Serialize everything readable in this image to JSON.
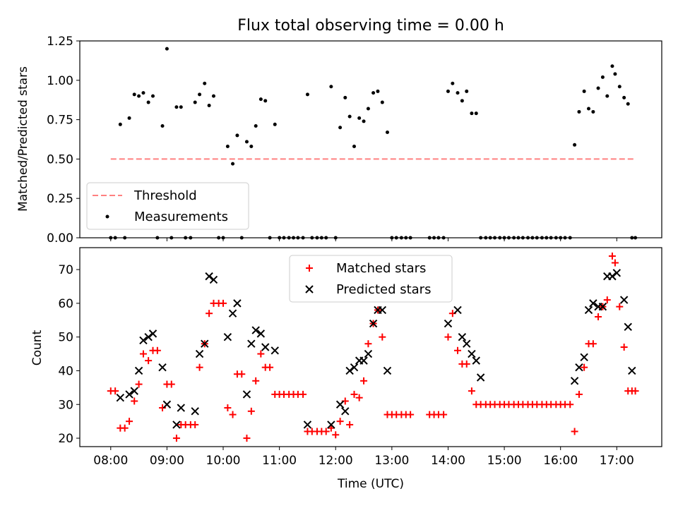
{
  "chart_data": [
    {
      "type": "scatter",
      "title": "Flux total observing time = 0.00 h",
      "xlabel": "",
      "ylabel": "Matched/Predicted stars",
      "xlim": [
        7.45,
        17.8
      ],
      "ylim": [
        0.0,
        1.25
      ],
      "yticks": [
        0.0,
        0.25,
        0.5,
        0.75,
        1.0,
        1.25
      ],
      "ytick_labels": [
        "0.00",
        "0.25",
        "0.50",
        "0.75",
        "1.00",
        "1.25"
      ],
      "threshold": {
        "name": "Threshold",
        "value": 0.5,
        "x_range": [
          8.0,
          17.33
        ],
        "color": "#ff8080"
      },
      "legend": {
        "location": "lower-left",
        "entries": [
          "Threshold",
          "Measurements"
        ]
      },
      "series": [
        {
          "name": "Measurements",
          "color": "#000000",
          "marker": "dot",
          "x": [
            8.0,
            8.08,
            8.17,
            8.25,
            8.33,
            8.42,
            8.5,
            8.58,
            8.67,
            8.75,
            8.83,
            8.92,
            9.0,
            9.08,
            9.17,
            9.25,
            9.33,
            9.42,
            9.5,
            9.58,
            9.67,
            9.75,
            9.83,
            9.92,
            10.0,
            10.08,
            10.17,
            10.25,
            10.33,
            10.42,
            10.5,
            10.58,
            10.67,
            10.75,
            10.83,
            10.92,
            11.0,
            11.08,
            11.17,
            11.25,
            11.33,
            11.42,
            11.5,
            11.58,
            11.67,
            11.75,
            11.83,
            11.92,
            12.0,
            12.08,
            12.17,
            12.25,
            12.33,
            12.42,
            12.5,
            12.58,
            12.67,
            12.75,
            12.83,
            12.92,
            13.0,
            13.08,
            13.17,
            13.25,
            13.33,
            13.67,
            13.75,
            13.83,
            13.92,
            14.0,
            14.08,
            14.17,
            14.25,
            14.33,
            14.42,
            14.5,
            14.58,
            14.67,
            14.75,
            14.83,
            14.92,
            15.0,
            15.08,
            15.17,
            15.25,
            15.33,
            15.42,
            15.5,
            15.58,
            15.67,
            15.75,
            15.83,
            15.92,
            16.0,
            16.08,
            16.17,
            16.25,
            16.33,
            16.42,
            16.5,
            16.58,
            16.67,
            16.75,
            16.83,
            16.92,
            16.97,
            17.05,
            17.13,
            17.2,
            17.27,
            17.33
          ],
          "y": [
            0.0,
            0.0,
            0.72,
            0.0,
            0.76,
            0.91,
            0.9,
            0.92,
            0.86,
            0.9,
            0.0,
            0.71,
            1.2,
            0.0,
            0.83,
            0.83,
            0.0,
            0.0,
            0.86,
            0.91,
            0.98,
            0.84,
            0.9,
            0.0,
            0.0,
            0.58,
            0.47,
            0.65,
            0.0,
            0.61,
            0.58,
            0.71,
            0.88,
            0.87,
            0.0,
            0.72,
            0.0,
            0.0,
            0.0,
            0.0,
            0.0,
            0.0,
            0.91,
            0.0,
            0.0,
            0.0,
            0.0,
            0.96,
            0.0,
            0.7,
            0.89,
            0.77,
            0.58,
            0.76,
            0.74,
            0.82,
            0.92,
            0.93,
            0.86,
            0.67,
            0.0,
            0.0,
            0.0,
            0.0,
            0.0,
            0.0,
            0.0,
            0.0,
            0.0,
            0.93,
            0.98,
            0.92,
            0.87,
            0.93,
            0.79,
            0.79,
            0.0,
            0.0,
            0.0,
            0.0,
            0.0,
            0.0,
            0.0,
            0.0,
            0.0,
            0.0,
            0.0,
            0.0,
            0.0,
            0.0,
            0.0,
            0.0,
            0.0,
            0.0,
            0.0,
            0.0,
            0.59,
            0.8,
            0.93,
            0.82,
            0.8,
            0.95,
            1.02,
            0.9,
            1.09,
            1.04,
            0.96,
            0.89,
            0.85,
            0.0,
            0.0
          ]
        }
      ]
    },
    {
      "type": "scatter",
      "title": "",
      "xlabel": "Time (UTC)",
      "ylabel": "Count",
      "xlim": [
        7.45,
        17.8
      ],
      "ylim": [
        17.5,
        76.5
      ],
      "yticks": [
        20,
        30,
        40,
        50,
        60,
        70
      ],
      "ytick_labels": [
        "20",
        "30",
        "40",
        "50",
        "60",
        "70"
      ],
      "xticks": [
        8,
        9,
        10,
        11,
        12,
        13,
        14,
        15,
        16,
        17
      ],
      "xtick_labels": [
        "08:00",
        "09:00",
        "10:00",
        "11:00",
        "12:00",
        "13:00",
        "14:00",
        "15:00",
        "16:00",
        "17:00"
      ],
      "legend": {
        "location": "upper-center",
        "entries": [
          "Matched stars",
          "Predicted stars"
        ]
      },
      "series": [
        {
          "name": "Matched stars",
          "color": "#ff0000",
          "marker": "plus",
          "x": [
            8.0,
            8.08,
            8.17,
            8.25,
            8.33,
            8.42,
            8.5,
            8.58,
            8.67,
            8.75,
            8.83,
            8.92,
            9.0,
            9.08,
            9.17,
            9.25,
            9.33,
            9.42,
            9.5,
            9.58,
            9.67,
            9.75,
            9.83,
            9.92,
            10.0,
            10.08,
            10.17,
            10.25,
            10.33,
            10.42,
            10.5,
            10.58,
            10.67,
            10.75,
            10.83,
            10.92,
            11.0,
            11.08,
            11.17,
            11.25,
            11.33,
            11.42,
            11.5,
            11.58,
            11.67,
            11.75,
            11.83,
            11.92,
            12.0,
            12.08,
            12.17,
            12.25,
            12.33,
            12.42,
            12.5,
            12.58,
            12.67,
            12.75,
            12.83,
            12.92,
            13.0,
            13.08,
            13.17,
            13.25,
            13.33,
            13.67,
            13.75,
            13.83,
            13.92,
            14.0,
            14.08,
            14.17,
            14.25,
            14.33,
            14.42,
            14.5,
            14.58,
            14.67,
            14.75,
            14.83,
            14.92,
            15.0,
            15.08,
            15.17,
            15.25,
            15.33,
            15.42,
            15.5,
            15.58,
            15.67,
            15.75,
            15.83,
            15.92,
            16.0,
            16.08,
            16.17,
            16.25,
            16.33,
            16.42,
            16.5,
            16.58,
            16.67,
            16.75,
            16.83,
            16.92,
            16.97,
            17.05,
            17.13,
            17.2,
            17.27,
            17.33
          ],
          "y": [
            34,
            34,
            23,
            23,
            25,
            31,
            36,
            45,
            43,
            46,
            46,
            29,
            36,
            36,
            20,
            24,
            24,
            24,
            24,
            41,
            48,
            57,
            60,
            60,
            60,
            29,
            27,
            39,
            39,
            20,
            28,
            37,
            45,
            41,
            41,
            33,
            33,
            33,
            33,
            33,
            33,
            33,
            22,
            22,
            22,
            22,
            22,
            23,
            21,
            25,
            31,
            24,
            33,
            32,
            37,
            48,
            54,
            58,
            50,
            27,
            27,
            27,
            27,
            27,
            27,
            27,
            27,
            27,
            27,
            50,
            57,
            46,
            42,
            42,
            34,
            30,
            30,
            30,
            30,
            30,
            30,
            30,
            30,
            30,
            30,
            30,
            30,
            30,
            30,
            30,
            30,
            30,
            30,
            30,
            30,
            30,
            22,
            33,
            41,
            48,
            48,
            56,
            59,
            61,
            74,
            72,
            59,
            47,
            34,
            34,
            34
          ]
        },
        {
          "name": "Predicted stars",
          "color": "#000000",
          "marker": "x",
          "x": [
            8.17,
            8.33,
            8.42,
            8.5,
            8.58,
            8.67,
            8.75,
            8.92,
            9.0,
            9.17,
            9.25,
            9.5,
            9.58,
            9.67,
            9.75,
            9.83,
            10.08,
            10.17,
            10.25,
            10.42,
            10.5,
            10.58,
            10.67,
            10.75,
            10.92,
            11.5,
            11.92,
            12.08,
            12.17,
            12.25,
            12.33,
            12.42,
            12.5,
            12.58,
            12.67,
            12.75,
            12.83,
            12.92,
            14.0,
            14.17,
            14.25,
            14.33,
            14.42,
            14.5,
            14.58,
            16.25,
            16.33,
            16.42,
            16.5,
            16.58,
            16.67,
            16.75,
            16.83,
            16.92,
            17.0,
            17.13,
            17.2,
            17.27
          ],
          "y": [
            32,
            33,
            34,
            40,
            49,
            50,
            51,
            41,
            30,
            24,
            29,
            28,
            45,
            48,
            68,
            67,
            50,
            57,
            60,
            33,
            48,
            52,
            51,
            47,
            46,
            24,
            24,
            30,
            28,
            40,
            41,
            43,
            43,
            45,
            54,
            58,
            58,
            40,
            54,
            58,
            50,
            48,
            45,
            43,
            38,
            37,
            41,
            44,
            58,
            60,
            59,
            59,
            68,
            68,
            69,
            61,
            53,
            40
          ]
        }
      ]
    }
  ]
}
